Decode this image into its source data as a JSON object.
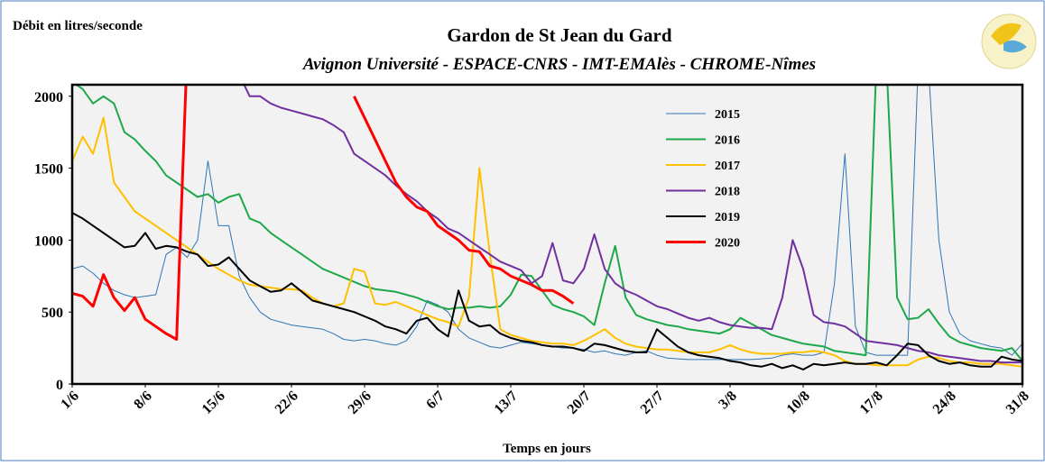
{
  "chart_data": {
    "type": "line",
    "title": "Gardon de St Jean du Gard",
    "subtitle": "Avignon Université - ESPACE-CNRS - IMT-EMAlès - CHROME-Nîmes",
    "y_label": "Débit en litres/seconde",
    "x_label": "Temps en jours",
    "x": [
      0,
      1,
      2,
      3,
      4,
      5,
      6,
      7,
      8,
      9,
      10,
      11,
      12,
      13,
      14,
      15,
      16,
      17,
      18,
      19,
      20,
      21,
      22,
      23,
      24,
      25,
      26,
      27,
      28,
      29,
      30,
      31,
      32,
      33,
      34,
      35,
      36,
      37,
      38,
      39,
      40,
      41,
      42,
      43,
      44,
      45,
      46,
      47,
      48,
      49,
      50,
      51,
      52,
      53,
      54,
      55,
      56,
      57,
      58,
      59,
      60,
      61,
      62,
      63,
      64,
      65,
      66,
      67,
      68,
      69,
      70,
      71,
      72,
      73,
      74,
      75,
      76,
      77,
      78,
      79,
      80,
      81,
      82,
      83,
      84,
      85,
      86,
      87,
      88,
      89,
      90,
      91
    ],
    "xlim": [
      0,
      91
    ],
    "xticks": [
      {
        "value": 0,
        "label": "1/6"
      },
      {
        "value": 7,
        "label": "8/6"
      },
      {
        "value": 14,
        "label": "15/6"
      },
      {
        "value": 21,
        "label": "22/6"
      },
      {
        "value": 28,
        "label": "29/6"
      },
      {
        "value": 35,
        "label": "6/7"
      },
      {
        "value": 42,
        "label": "13/7"
      },
      {
        "value": 49,
        "label": "20/7"
      },
      {
        "value": 56,
        "label": "27/7"
      },
      {
        "value": 63,
        "label": "3/8"
      },
      {
        "value": 70,
        "label": "10/8"
      },
      {
        "value": 77,
        "label": "17/8"
      },
      {
        "value": 84,
        "label": "24/8"
      },
      {
        "value": 91,
        "label": "31/8"
      }
    ],
    "ylim": [
      0,
      2080
    ],
    "yticks": [
      0,
      500,
      1000,
      1500,
      2000
    ],
    "series": [
      {
        "name": "2015",
        "color": "#2e75b6",
        "values": [
          800,
          820,
          770,
          700,
          650,
          620,
          600,
          610,
          620,
          900,
          950,
          880,
          1000,
          1550,
          1100,
          1100,
          750,
          600,
          500,
          450,
          430,
          410,
          400,
          390,
          380,
          350,
          310,
          300,
          310,
          300,
          280,
          270,
          300,
          400,
          580,
          550,
          500,
          380,
          320,
          290,
          260,
          250,
          270,
          290,
          280,
          270,
          260,
          250,
          250,
          240,
          220,
          230,
          210,
          200,
          220,
          230,
          200,
          180,
          175,
          170,
          170,
          170,
          170,
          170,
          170,
          170,
          175,
          180,
          200,
          210,
          200,
          200,
          220,
          700,
          1600,
          400,
          220,
          200,
          200,
          200,
          200,
          2200,
          2200,
          1000,
          500,
          350,
          300,
          280,
          260,
          250,
          200,
          280
        ]
      },
      {
        "name": "2016",
        "color": "#1fa84a",
        "values": [
          2100,
          2050,
          1950,
          2000,
          1950,
          1750,
          1700,
          1620,
          1550,
          1450,
          1400,
          1350,
          1300,
          1320,
          1260,
          1300,
          1320,
          1150,
          1120,
          1050,
          1000,
          950,
          900,
          850,
          800,
          770,
          740,
          710,
          680,
          660,
          650,
          640,
          620,
          600,
          570,
          540,
          520,
          530,
          530,
          540,
          530,
          540,
          620,
          760,
          750,
          650,
          550,
          520,
          500,
          470,
          410,
          700,
          960,
          600,
          480,
          450,
          430,
          410,
          400,
          380,
          370,
          360,
          350,
          380,
          460,
          420,
          380,
          340,
          320,
          300,
          280,
          270,
          260,
          230,
          220,
          210,
          200,
          2200,
          2200,
          600,
          450,
          460,
          520,
          420,
          330,
          290,
          270,
          250,
          240,
          230,
          250,
          160
        ]
      },
      {
        "name": "2017",
        "color": "#ffc000",
        "values": [
          1550,
          1720,
          1600,
          1850,
          1400,
          1300,
          1200,
          1150,
          1100,
          1050,
          1000,
          950,
          900,
          850,
          800,
          760,
          720,
          690,
          680,
          670,
          660,
          660,
          650,
          600,
          560,
          540,
          560,
          800,
          780,
          560,
          550,
          570,
          540,
          510,
          480,
          450,
          430,
          400,
          600,
          1500,
          900,
          380,
          340,
          320,
          300,
          290,
          280,
          280,
          270,
          300,
          340,
          380,
          320,
          280,
          260,
          250,
          240,
          240,
          230,
          220,
          220,
          220,
          240,
          270,
          240,
          220,
          210,
          210,
          210,
          220,
          220,
          230,
          220,
          200,
          160,
          140,
          140,
          130,
          130,
          130,
          130,
          170,
          190,
          180,
          160,
          150,
          150,
          140,
          140,
          140,
          130,
          120
        ]
      },
      {
        "name": "2018",
        "color": "#7030a0",
        "values": [
          null,
          null,
          null,
          null,
          null,
          null,
          null,
          null,
          null,
          null,
          null,
          null,
          null,
          null,
          null,
          null,
          2150,
          2000,
          2000,
          1950,
          1920,
          1900,
          1880,
          1860,
          1840,
          1800,
          1750,
          1600,
          1550,
          1500,
          1450,
          1380,
          1320,
          1270,
          1200,
          1150,
          1080,
          1050,
          1000,
          950,
          900,
          850,
          820,
          790,
          700,
          750,
          980,
          720,
          700,
          800,
          1040,
          800,
          700,
          650,
          620,
          580,
          540,
          520,
          490,
          460,
          440,
          460,
          430,
          410,
          400,
          390,
          390,
          380,
          600,
          1000,
          800,
          480,
          430,
          420,
          400,
          350,
          300,
          290,
          280,
          270,
          250,
          230,
          220,
          200,
          190,
          180,
          170,
          160,
          160,
          150,
          150,
          150
        ]
      },
      {
        "name": "2019",
        "color": "#000000",
        "values": [
          1190,
          1150,
          1100,
          1050,
          1000,
          950,
          960,
          1050,
          940,
          960,
          950,
          920,
          900,
          820,
          830,
          880,
          800,
          720,
          680,
          640,
          650,
          700,
          640,
          580,
          560,
          540,
          520,
          500,
          470,
          440,
          400,
          380,
          350,
          440,
          460,
          380,
          330,
          650,
          440,
          400,
          410,
          350,
          320,
          300,
          290,
          270,
          260,
          260,
          250,
          230,
          280,
          270,
          250,
          230,
          220,
          220,
          380,
          320,
          260,
          220,
          200,
          190,
          180,
          160,
          150,
          130,
          120,
          140,
          110,
          130,
          100,
          140,
          130,
          140,
          150,
          140,
          140,
          150,
          130,
          200,
          280,
          270,
          200,
          160,
          140,
          150,
          130,
          120,
          120,
          190,
          170,
          160
        ]
      },
      {
        "name": "2020",
        "color": "#ff0000",
        "values": [
          630,
          610,
          540,
          760,
          600,
          510,
          600,
          450,
          400,
          350,
          310,
          2300,
          null,
          null,
          null,
          null,
          null,
          null,
          null,
          null,
          null,
          null,
          null,
          null,
          null,
          null,
          null,
          2000,
          1850,
          1700,
          1550,
          1400,
          1300,
          1230,
          1200,
          1100,
          1050,
          1000,
          930,
          920,
          820,
          800,
          750,
          720,
          690,
          650,
          650,
          610,
          560,
          null,
          null,
          null,
          null,
          null,
          null,
          null,
          null,
          null,
          null,
          null,
          null,
          null,
          null,
          null,
          null,
          null,
          null,
          null,
          null,
          null,
          null,
          null,
          null,
          null,
          null,
          null,
          null,
          null,
          null,
          null,
          null,
          null,
          null,
          null,
          null,
          null,
          null,
          null,
          null,
          null,
          null,
          null
        ]
      }
    ]
  }
}
